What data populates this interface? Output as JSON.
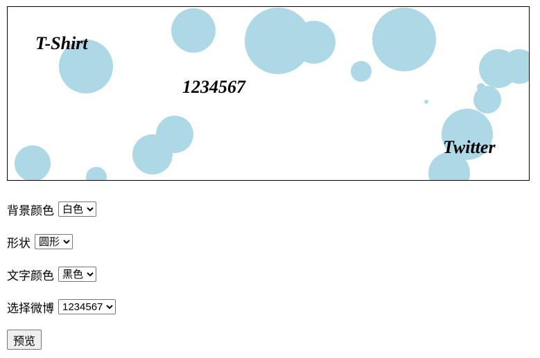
{
  "canvas": {
    "bubble_color": "#add8e6",
    "words": [
      "T-Shirt",
      "1234567",
      "Twitter"
    ]
  },
  "form": {
    "background_color": {
      "label": "背景颜色",
      "selected": "白色"
    },
    "shape": {
      "label": "形状",
      "selected": "圆形"
    },
    "text_color": {
      "label": "文字颜色",
      "selected": "黑色"
    },
    "weibo": {
      "label": "选择微博",
      "selected": "1234567"
    },
    "preview_button": "预览"
  }
}
